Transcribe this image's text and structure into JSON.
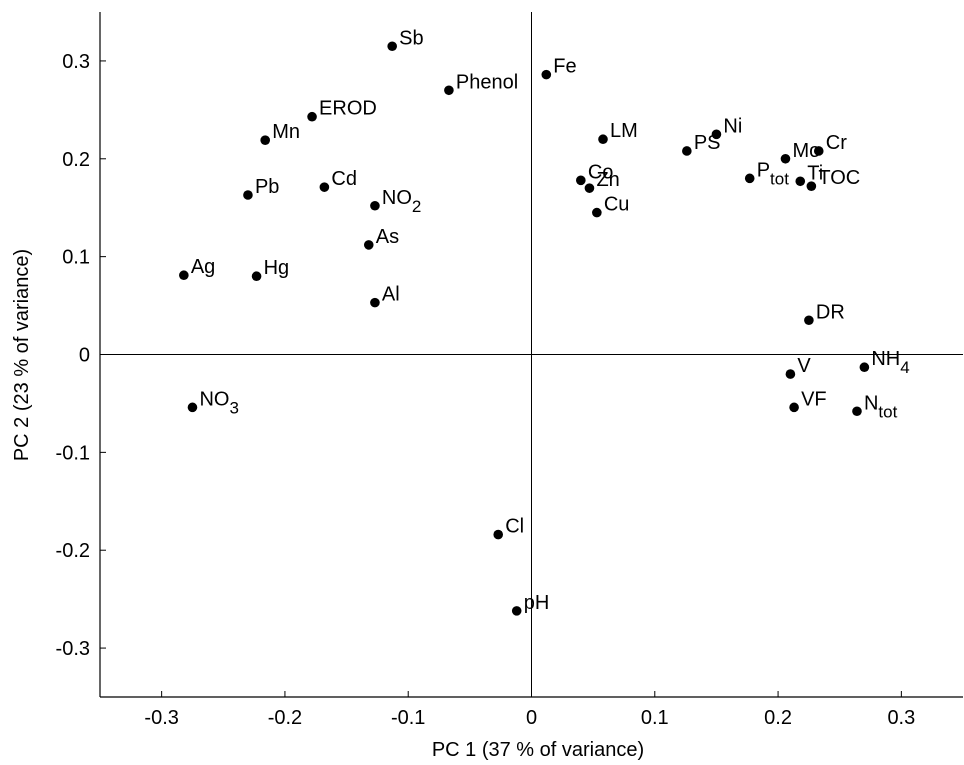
{
  "chart_data": {
    "type": "scatter",
    "xlabel": "PC 1 (37 % of variance)",
    "ylabel": "PC 2 (23 % of variance)",
    "xlim": [
      -0.35,
      0.35
    ],
    "ylim": [
      -0.35,
      0.35
    ],
    "xticks": [
      -0.3,
      -0.2,
      -0.1,
      0,
      0.1,
      0.2,
      0.3
    ],
    "yticks": [
      -0.3,
      -0.2,
      -0.1,
      0,
      0.1,
      0.2,
      0.3
    ],
    "xtick_labels": [
      "-0.3",
      "-0.2",
      "-0.1",
      "0",
      "0.1",
      "0.2",
      "0.3"
    ],
    "ytick_labels": [
      "-0.3",
      "-0.2",
      "-0.1",
      "0",
      "0.1",
      "0.2",
      "0.3"
    ],
    "zero_lines": true,
    "grid": false,
    "points": [
      {
        "label": "Sb",
        "x": -0.113,
        "y": 0.315
      },
      {
        "label": "Phenol",
        "x": -0.067,
        "y": 0.27
      },
      {
        "label": "Fe",
        "x": 0.012,
        "y": 0.286
      },
      {
        "label": "EROD",
        "x": -0.178,
        "y": 0.243
      },
      {
        "label": "Mn",
        "x": -0.216,
        "y": 0.219
      },
      {
        "label": "Pb",
        "x": -0.23,
        "y": 0.163
      },
      {
        "label": "Cd",
        "x": -0.168,
        "y": 0.171
      },
      {
        "label": "NO",
        "sub": "2",
        "x": -0.127,
        "y": 0.152
      },
      {
        "label": "As",
        "x": -0.132,
        "y": 0.112
      },
      {
        "label": "Al",
        "x": -0.127,
        "y": 0.053
      },
      {
        "label": "Ag",
        "x": -0.282,
        "y": 0.081
      },
      {
        "label": "Hg",
        "x": -0.223,
        "y": 0.08
      },
      {
        "label": "NO",
        "sub": "3",
        "x": -0.275,
        "y": -0.054
      },
      {
        "label": "LM",
        "x": 0.058,
        "y": 0.22
      },
      {
        "label": "Co",
        "x": 0.04,
        "y": 0.178
      },
      {
        "label": "Zn",
        "x": 0.047,
        "y": 0.17
      },
      {
        "label": "Cu",
        "x": 0.053,
        "y": 0.145
      },
      {
        "label": "PS",
        "x": 0.126,
        "y": 0.208
      },
      {
        "label": "Ni",
        "x": 0.15,
        "y": 0.225
      },
      {
        "label": "P",
        "sub": "tot",
        "x": 0.177,
        "y": 0.18
      },
      {
        "label": "Mo",
        "x": 0.206,
        "y": 0.2
      },
      {
        "label": "Cr",
        "x": 0.233,
        "y": 0.208
      },
      {
        "label": "Ti",
        "x": 0.218,
        "y": 0.177
      },
      {
        "label": "TOC",
        "x": 0.227,
        "y": 0.172
      },
      {
        "label": "DR",
        "x": 0.225,
        "y": 0.035
      },
      {
        "label": "V",
        "x": 0.21,
        "y": -0.02
      },
      {
        "label": "NH",
        "sub": "4",
        "x": 0.27,
        "y": -0.013
      },
      {
        "label": "VF",
        "x": 0.213,
        "y": -0.054
      },
      {
        "label": "N",
        "sub": "tot",
        "x": 0.264,
        "y": -0.058
      },
      {
        "label": "Cl",
        "x": -0.027,
        "y": -0.184
      },
      {
        "label": "pH",
        "x": -0.012,
        "y": -0.262
      }
    ]
  }
}
